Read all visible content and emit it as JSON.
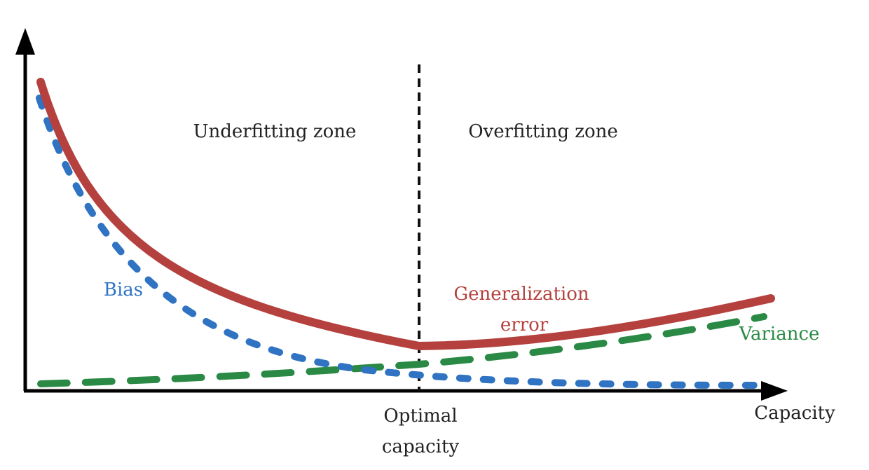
{
  "labels": {
    "underfitting": "Underfitting zone",
    "overfitting": "Overfitting zone",
    "bias": "Bias",
    "generalization_line1": "Generalization",
    "generalization_line2": "error",
    "variance": "Variance",
    "optimal_line1": "Optimal",
    "optimal_line2": "capacity",
    "capacity": "Capacity"
  },
  "colors": {
    "axis": "#000000",
    "text": "#222222",
    "generalization": "#b5413e",
    "bias": "#2f73c2",
    "variance": "#2a8a45",
    "optimal_line": "#111111"
  }
}
